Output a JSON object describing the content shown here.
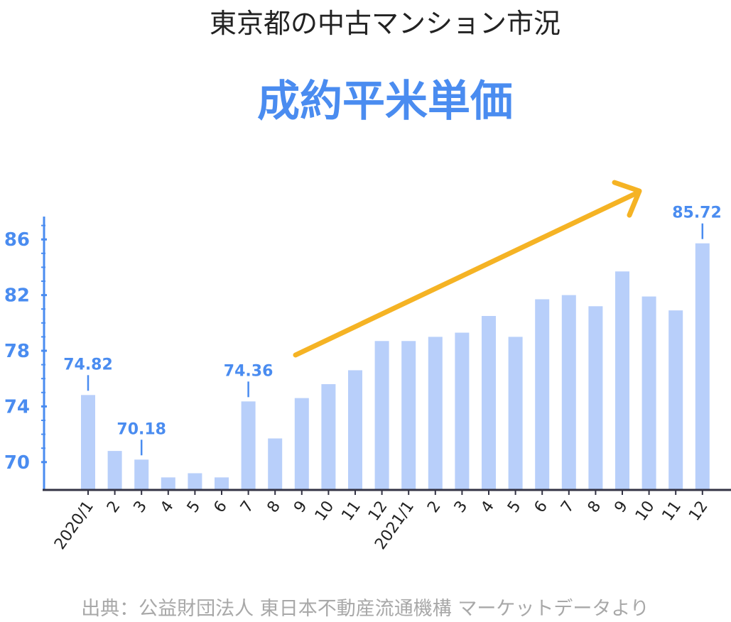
{
  "header": {
    "subtitle": "東京都の中古マンション市況",
    "title": "成約平米単価"
  },
  "footer": {
    "source": "出典：公益財団法人 東日本不動産流通機構 マーケットデータより"
  },
  "colors": {
    "bar": "#b8cffa",
    "accent_blue": "#4a8cf0",
    "arrow": "#f5b324",
    "axis": "#333344",
    "text": "#222222",
    "source_text": "#a8a8a8"
  },
  "chart_data": {
    "type": "bar",
    "title": "成約平米単価",
    "subtitle": "東京都の中古マンション市況",
    "categories": [
      "2020/1",
      "2",
      "3",
      "4",
      "5",
      "6",
      "7",
      "8",
      "9",
      "10",
      "11",
      "12",
      "2021/1",
      "2",
      "3",
      "4",
      "5",
      "6",
      "7",
      "8",
      "9",
      "10",
      "11",
      "12"
    ],
    "values": [
      74.82,
      70.8,
      70.18,
      68.9,
      69.2,
      68.9,
      74.36,
      71.7,
      74.6,
      75.6,
      76.6,
      78.7,
      78.7,
      79.0,
      79.3,
      80.5,
      79.0,
      81.7,
      82.0,
      81.2,
      83.7,
      81.9,
      80.9,
      85.72
    ],
    "ylim": [
      68.0,
      88.0
    ],
    "yticks": [
      70,
      74,
      78,
      82,
      86
    ],
    "annotations": [
      {
        "index": 0,
        "text": "74.82"
      },
      {
        "index": 2,
        "text": "70.18"
      },
      {
        "index": 6,
        "text": "74.36"
      },
      {
        "index": 23,
        "text": "85.72"
      }
    ],
    "trend_arrow": true,
    "grid": false,
    "xlabel": "",
    "ylabel": ""
  }
}
